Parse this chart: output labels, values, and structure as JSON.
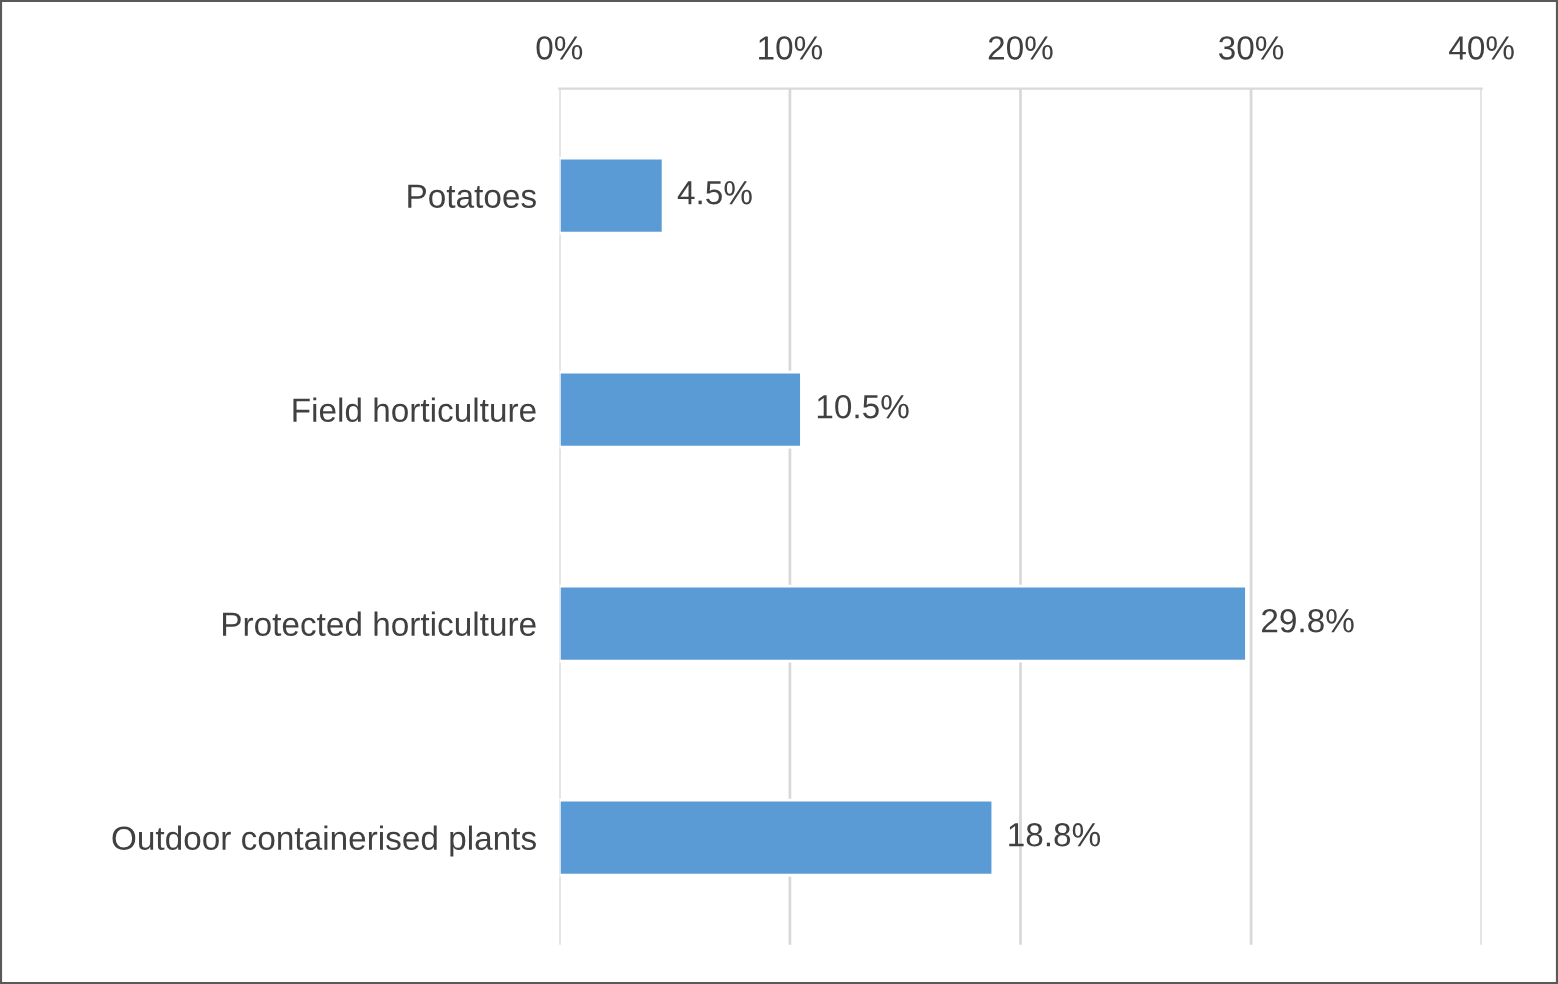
{
  "chart_data": {
    "type": "bar",
    "orientation": "horizontal",
    "categories": [
      "Potatoes",
      "Field horticulture",
      "Protected horticulture",
      "Outdoor containerised plants"
    ],
    "series": [
      {
        "color": "#5b9bd5",
        "values": [
          4.5,
          10.5,
          29.8,
          18.8
        ]
      }
    ],
    "value_labels": [
      "4.5%",
      "10.5%",
      "29.8%",
      "18.8%"
    ],
    "xlim": [
      0,
      40
    ],
    "xticks": [
      {
        "value": 0,
        "label": "0%"
      },
      {
        "value": 10,
        "label": "10%"
      },
      {
        "value": 20,
        "label": "20%"
      },
      {
        "value": 30,
        "label": "30%"
      },
      {
        "value": 40,
        "label": "40%"
      }
    ],
    "grid": "x",
    "legend": false
  }
}
